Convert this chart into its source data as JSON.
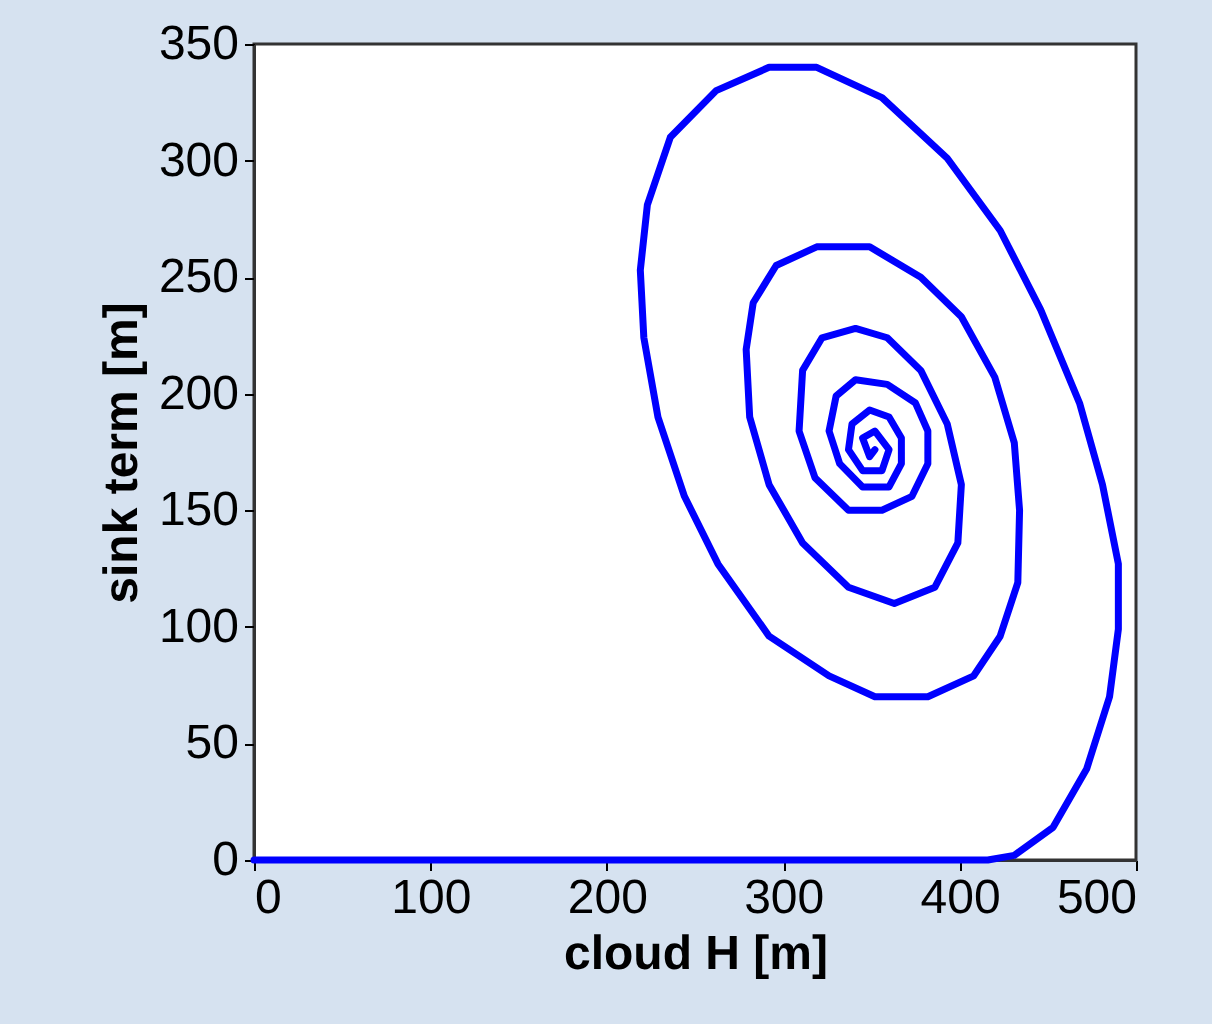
{
  "chart_data": {
    "type": "line",
    "xlabel": "cloud H [m]",
    "ylabel": "sink term [m]",
    "xlim": [
      0,
      500
    ],
    "ylim": [
      0,
      350
    ],
    "xticks": [
      0,
      100,
      200,
      300,
      400,
      500
    ],
    "yticks": [
      0,
      50,
      100,
      150,
      200,
      250,
      300,
      350
    ],
    "grid": false,
    "legend": false,
    "marker": "none",
    "line_style": "solid",
    "series": [
      {
        "color": "#0000ff",
        "x": [
          0,
          416,
          431,
          453,
          472,
          485,
          490,
          490,
          481,
          468,
          446,
          423,
          393,
          356,
          319,
          292,
          262,
          236,
          223,
          219,
          221,
          229,
          244,
          263,
          292,
          326,
          352,
          382,
          408,
          423,
          433,
          434,
          431,
          420,
          401,
          378,
          349,
          319,
          296,
          283,
          279,
          281,
          292,
          311,
          337,
          363,
          386,
          399,
          401,
          393,
          378,
          359,
          341,
          322,
          311,
          309,
          318,
          337,
          356,
          373,
          382,
          382,
          375,
          359,
          341,
          330,
          326,
          332,
          345,
          360,
          367,
          367,
          360,
          349,
          339,
          337,
          345,
          356,
          360,
          352,
          345,
          349,
          352
        ],
        "values": [
          0,
          0,
          2,
          14,
          39,
          70,
          99,
          127,
          161,
          196,
          236,
          270,
          301,
          327,
          340,
          340,
          330,
          310,
          281,
          253,
          224,
          190,
          156,
          127,
          96,
          79,
          70,
          70,
          79,
          96,
          119,
          150,
          179,
          207,
          233,
          250,
          263,
          263,
          255,
          239,
          219,
          190,
          161,
          136,
          117,
          110,
          117,
          136,
          161,
          187,
          210,
          224,
          228,
          224,
          210,
          184,
          164,
          150,
          150,
          156,
          170,
          184,
          196,
          204,
          206,
          199,
          184,
          170,
          160,
          160,
          170,
          181,
          190,
          193,
          187,
          176,
          167,
          167,
          176,
          184,
          181,
          173,
          176
        ]
      }
    ]
  }
}
